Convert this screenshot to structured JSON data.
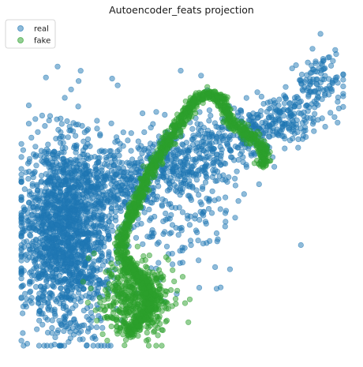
{
  "chart_data": {
    "type": "scatter",
    "title": "Autoencoder_feats projection",
    "xlabel": "",
    "ylabel": "",
    "axes_visible": false,
    "grid": false,
    "legend_position": "top-left",
    "xlim": [
      0,
      100
    ],
    "ylim": [
      0,
      100
    ],
    "series": [
      {
        "name": "real",
        "color": "#1f77b4",
        "alpha": 0.5,
        "clusters": [
          {
            "cx": 14.0,
            "cy": 36.0,
            "sx": 6.5,
            "sy": 16.0,
            "n": 1600,
            "rho": 0.05
          },
          {
            "cx": 30.0,
            "cy": 50.0,
            "sx": 13.0,
            "sy": 8.0,
            "n": 450,
            "rho": 0.45
          },
          {
            "cx": 55.0,
            "cy": 60.0,
            "sx": 14.0,
            "sy": 6.0,
            "n": 280,
            "rho": 0.6
          },
          {
            "cx": 80.0,
            "cy": 72.0,
            "sx": 9.0,
            "sy": 4.5,
            "n": 230,
            "rho": 0.5
          },
          {
            "cx": 91.0,
            "cy": 84.0,
            "sx": 5.0,
            "sy": 4.0,
            "n": 90,
            "rho": 0.3
          },
          {
            "cx": 46.0,
            "cy": 40.0,
            "sx": 12.0,
            "sy": 10.0,
            "n": 160,
            "rho": 0.3
          },
          {
            "cx": 48.0,
            "cy": 62.0,
            "sx": 10.0,
            "sy": 8.0,
            "n": 120,
            "rho": 0.2
          }
        ]
      },
      {
        "name": "fake",
        "color": "#2ca02c",
        "alpha": 0.5,
        "curve": [
          [
            33.0,
            5.0
          ],
          [
            37.0,
            8.0
          ],
          [
            40.0,
            13.0
          ],
          [
            40.0,
            18.0
          ],
          [
            35.0,
            24.0
          ],
          [
            31.0,
            30.0
          ],
          [
            32.0,
            37.0
          ],
          [
            35.0,
            43.0
          ],
          [
            38.0,
            50.0
          ],
          [
            41.0,
            57.0
          ],
          [
            45.0,
            64.0
          ],
          [
            50.0,
            72.0
          ],
          [
            54.0,
            78.0
          ],
          [
            58.0,
            80.0
          ],
          [
            62.0,
            78.0
          ],
          [
            65.0,
            71.0
          ],
          [
            70.0,
            67.0
          ],
          [
            74.0,
            64.0
          ],
          [
            76.0,
            59.0
          ],
          [
            74.0,
            58.0
          ]
        ],
        "bottom_blob": {
          "cx": 36.0,
          "cy": 15.0,
          "sx": 5.5,
          "sy": 6.0,
          "n": 500
        },
        "curve_points": 1400,
        "curve_spread": 0.9
      }
    ]
  }
}
